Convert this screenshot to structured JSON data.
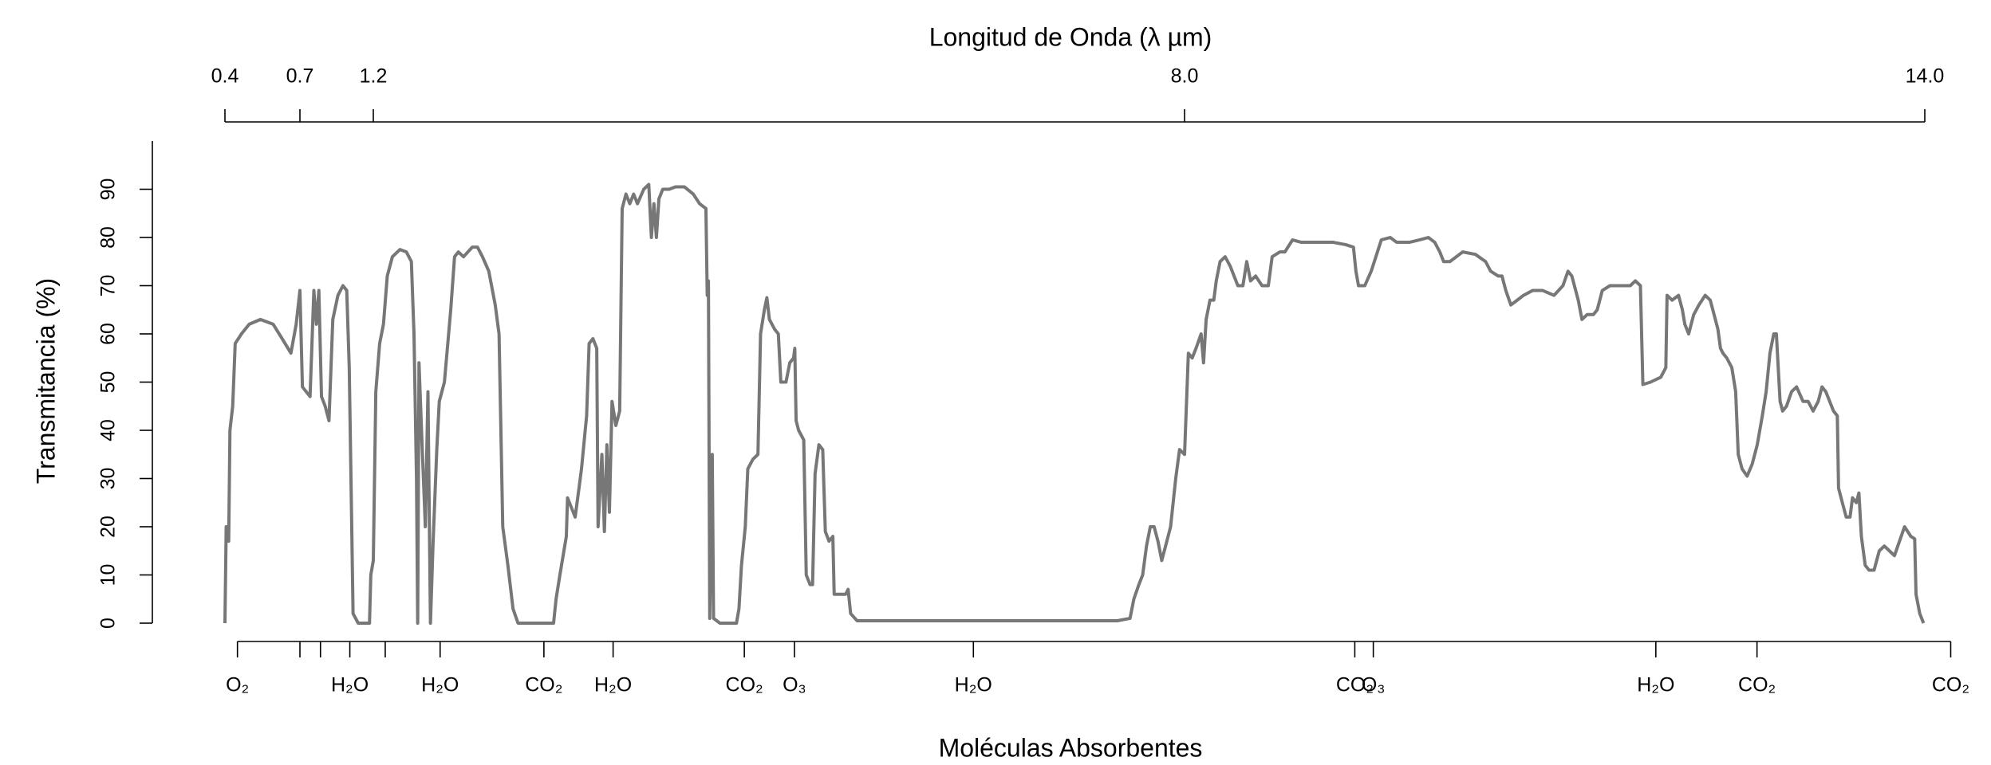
{
  "chart_data": {
    "type": "line",
    "top_axis_label": "Longitud de Onda (λ µm)",
    "x_label": "Moléculas Absorbentes",
    "y_label": "Transmitancia (%)",
    "color": "#777777",
    "xlim": [
      0.4,
      14.21
    ],
    "ylim": [
      0,
      100
    ],
    "xticks": [
      0.4,
      0.7,
      1.2,
      {
        "value": 8,
        "label": "8.0"
      },
      {
        "value": 14,
        "label": "14.0"
      }
    ],
    "yticks": [
      0,
      10,
      20,
      30,
      40,
      50,
      60,
      70,
      80,
      90
    ],
    "molecule_ticks": [
      {
        "value": 0.45,
        "label": "O₂"
      },
      {
        "value": 0.7,
        "label": null
      },
      {
        "value": 0.84,
        "label": null
      },
      {
        "value": 1.04,
        "label": "H₂O"
      },
      {
        "value": 1.3,
        "label": null
      },
      {
        "value": 1.76,
        "label": "H₂O"
      },
      {
        "value": 2.63,
        "label": "CO₂"
      },
      {
        "value": 3.21,
        "label": "H₂O"
      },
      {
        "value": 4.31,
        "label": "CO₂"
      },
      {
        "value": 4.73,
        "label": "O₃"
      },
      {
        "value": 6.23,
        "label": "H₂O"
      },
      {
        "value": 9.38,
        "label": "CO₂"
      },
      {
        "value": 9.53,
        "label": "O₃"
      },
      {
        "value": 11.82,
        "label": "H₂O"
      },
      {
        "value": 12.64,
        "label": "CO₂"
      },
      {
        "value": 14.21,
        "label": "CO₂"
      }
    ],
    "x": [
      0.4,
      0.405,
      0.415,
      0.42,
      0.431,
      0.441,
      0.466,
      0.497,
      0.542,
      0.593,
      0.629,
      0.664,
      0.685,
      0.7,
      0.717,
      0.743,
      0.769,
      0.795,
      0.812,
      0.829,
      0.847,
      0.872,
      0.898,
      0.924,
      0.959,
      0.993,
      1.019,
      1.036,
      1.053,
      1.062,
      1.097,
      1.174,
      1.183,
      1.2,
      1.221,
      1.253,
      1.285,
      1.317,
      1.36,
      1.423,
      1.477,
      1.519,
      1.541,
      1.562,
      1.572,
      1.583,
      1.604,
      1.636,
      1.658,
      1.679,
      1.7,
      1.732,
      1.753,
      1.796,
      1.849,
      1.881,
      1.913,
      1.956,
      2.03,
      2.073,
      2.115,
      2.168,
      2.222,
      2.254,
      2.285,
      2.328,
      2.371,
      2.413,
      2.711,
      2.732,
      2.764,
      2.818,
      2.828,
      2.86,
      2.892,
      2.924,
      2.945,
      2.988,
      3.009,
      3.041,
      3.073,
      3.084,
      3.116,
      3.137,
      3.158,
      3.179,
      3.201,
      3.233,
      3.265,
      3.286,
      3.318,
      3.35,
      3.382,
      3.414,
      3.467,
      3.509,
      3.531,
      3.552,
      3.573,
      3.594,
      3.626,
      3.68,
      3.733,
      3.807,
      3.882,
      3.935,
      3.988,
      3.999,
      4.009,
      4.02,
      4.041,
      4.052,
      4.105,
      4.244,
      4.265,
      4.286,
      4.318,
      4.339,
      4.382,
      4.424,
      4.446,
      4.478,
      4.499,
      4.52,
      4.563,
      4.595,
      4.616,
      4.659,
      4.691,
      4.723,
      4.733,
      4.744,
      4.765,
      4.808,
      4.829,
      4.861,
      4.882,
      4.903,
      4.935,
      4.967,
      4.989,
      5.02,
      5.052,
      5.063,
      5.106,
      5.159,
      5.18,
      5.201,
      5.255,
      7.436,
      7.543,
      7.575,
      7.617,
      7.649,
      7.681,
      7.713,
      7.745,
      7.777,
      7.809,
      7.841,
      7.883,
      7.926,
      7.958,
      8.0,
      8.031,
      8.062,
      8.093,
      8.134,
      8.154,
      8.175,
      8.206,
      8.237,
      8.257,
      8.288,
      8.329,
      8.371,
      8.432,
      8.473,
      8.504,
      8.535,
      8.576,
      8.628,
      8.679,
      8.71,
      8.772,
      8.813,
      8.875,
      8.947,
      9.05,
      9.204,
      9.307,
      9.369,
      9.389,
      9.41,
      9.461,
      9.513,
      9.595,
      9.667,
      9.719,
      9.822,
      9.904,
      9.976,
      10.028,
      10.069,
      10.1,
      10.151,
      10.203,
      10.254,
      10.357,
      10.44,
      10.481,
      10.543,
      10.573,
      10.604,
      10.645,
      10.697,
      10.748,
      10.821,
      10.903,
      10.995,
      11.067,
      11.108,
      11.139,
      11.16,
      11.191,
      11.221,
      11.263,
      11.314,
      11.345,
      11.386,
      11.448,
      11.551,
      11.613,
      11.654,
      11.695,
      11.715,
      11.777,
      11.86,
      11.901,
      11.911,
      11.952,
      12.004,
      12.035,
      12.055,
      12.086,
      12.127,
      12.169,
      12.22,
      12.261,
      12.292,
      12.323,
      12.344,
      12.364,
      12.395,
      12.436,
      12.467,
      12.488,
      12.519,
      12.56,
      12.601,
      12.642,
      12.683,
      12.714,
      12.745,
      12.776,
      12.797,
      12.827,
      12.848,
      12.879,
      12.92,
      12.961,
      13.013,
      13.054,
      13.095,
      13.136,
      13.167,
      13.198,
      13.229,
      13.26,
      13.291,
      13.301,
      13.342,
      13.363,
      13.394,
      13.414,
      13.445,
      13.466,
      13.486,
      13.517,
      13.548,
      13.589,
      13.631,
      13.672,
      13.713,
      13.754,
      13.795,
      13.836,
      13.887,
      13.918,
      13.929,
      13.959,
      13.99
    ],
    "values": [
      0,
      20,
      17,
      40,
      45,
      58,
      60,
      62,
      63,
      62,
      59,
      56,
      62,
      69,
      49,
      48,
      47,
      69,
      62,
      69,
      47,
      45,
      42,
      63,
      68,
      70,
      69,
      53,
      20,
      2,
      0,
      0,
      10,
      13,
      48,
      58,
      62,
      72,
      76,
      77.5,
      77,
      75,
      60,
      30,
      0,
      54,
      40,
      20,
      48,
      0,
      16,
      36,
      46,
      50,
      65,
      76,
      77,
      76,
      78,
      78,
      76,
      73,
      66,
      60,
      20,
      12,
      3,
      0,
      0,
      5,
      10,
      18,
      26,
      24,
      22,
      28,
      32,
      43,
      58,
      59,
      57,
      20,
      35,
      19,
      37,
      23,
      46,
      41,
      44,
      86,
      89,
      87,
      89,
      87,
      90,
      91,
      80,
      87,
      80,
      88,
      90,
      90,
      90.5,
      90.5,
      89,
      87,
      86,
      68,
      71,
      1,
      35,
      1,
      0,
      0,
      3,
      12,
      20,
      32,
      34,
      35,
      60,
      65,
      67.5,
      63,
      61,
      60,
      50,
      50,
      54,
      55,
      57,
      42,
      40,
      38,
      10,
      8,
      8,
      31,
      37,
      36,
      19,
      17,
      18,
      6,
      6,
      6,
      7,
      2,
      0.5,
      0.5,
      1,
      5,
      8,
      10,
      16,
      20,
      20,
      17,
      13,
      16,
      20,
      30,
      36,
      35,
      56,
      55,
      57,
      60,
      54,
      63,
      67,
      67,
      71,
      75,
      76,
      74,
      70,
      70,
      75,
      71,
      72,
      70,
      70,
      76,
      77,
      77,
      79.5,
      79,
      79,
      79,
      78.5,
      78,
      73,
      70,
      70,
      73,
      79.5,
      80,
      79,
      79,
      79.5,
      80,
      79,
      77,
      75,
      75,
      76,
      77,
      76.5,
      75,
      73,
      72,
      72,
      69,
      66,
      67,
      68,
      69,
      69,
      68,
      70,
      73,
      72,
      70,
      67,
      63,
      64,
      64,
      65,
      69,
      70,
      70,
      70,
      71,
      70,
      49.5,
      50,
      51,
      53,
      68,
      67,
      68,
      65,
      62,
      60,
      64,
      66,
      68,
      67,
      64,
      61,
      57,
      56,
      55,
      53,
      48,
      35,
      32,
      30.5,
      33,
      37,
      43,
      48,
      56,
      60,
      60,
      46,
      44,
      45,
      48,
      49,
      46,
      46,
      44,
      46,
      49,
      48,
      46,
      44,
      43,
      28,
      24,
      22,
      22,
      26,
      25,
      27,
      18,
      12,
      11,
      11,
      15,
      16,
      15,
      14,
      17,
      20,
      18,
      17.5,
      6,
      2,
      0
    ]
  }
}
